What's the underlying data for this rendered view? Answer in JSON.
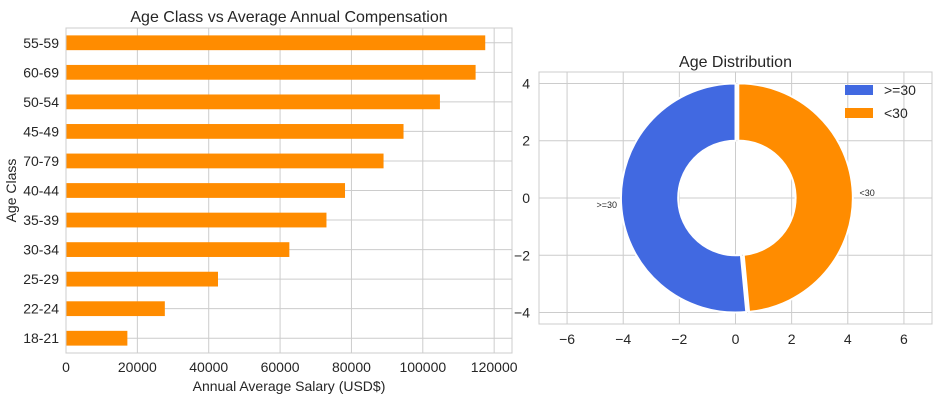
{
  "chart_data": [
    {
      "type": "bar",
      "orientation": "horizontal",
      "title": "Age Class vs Average Annual Compensation",
      "xlabel": "Annual Average Salary (USD$)",
      "ylabel": "Age Class",
      "categories": [
        "55-59",
        "60-69",
        "50-54",
        "45-49",
        "70-79",
        "40-44",
        "35-39",
        "30-34",
        "25-29",
        "22-24",
        "18-21"
      ],
      "values": [
        117500,
        114800,
        104800,
        94600,
        89000,
        78200,
        73000,
        62600,
        42600,
        27700,
        17200
      ],
      "xlim": [
        0,
        125000
      ],
      "xticks": [
        0,
        20000,
        40000,
        60000,
        80000,
        100000,
        120000
      ],
      "xtick_labels": [
        "0",
        "20000",
        "40000",
        "60000",
        "80000",
        "100000",
        "120000"
      ],
      "color": "#ff8c00",
      "grid": true
    },
    {
      "type": "pie",
      "variant": "donut",
      "title": "Age Distribution",
      "labels": [
        ">=30",
        "<30"
      ],
      "values": [
        51.5,
        48.5
      ],
      "colors": [
        "#4169e1",
        "#ff8c00"
      ],
      "outer_radius": 4,
      "inner_radius": 2,
      "start_angle_deg": 90,
      "explode": [
        0,
        0.1
      ],
      "slice_label_radius": 4.5,
      "xlim": [
        -7,
        7
      ],
      "ylim": [
        -4.4,
        4.4
      ],
      "xticks": [
        -6,
        -4,
        -2,
        0,
        2,
        4,
        6
      ],
      "yticks": [
        -4,
        -2,
        0,
        2,
        4
      ],
      "legend": {
        "placement": "top-right",
        "entries": [
          ">=30",
          "<30"
        ]
      },
      "grid": true
    }
  ]
}
